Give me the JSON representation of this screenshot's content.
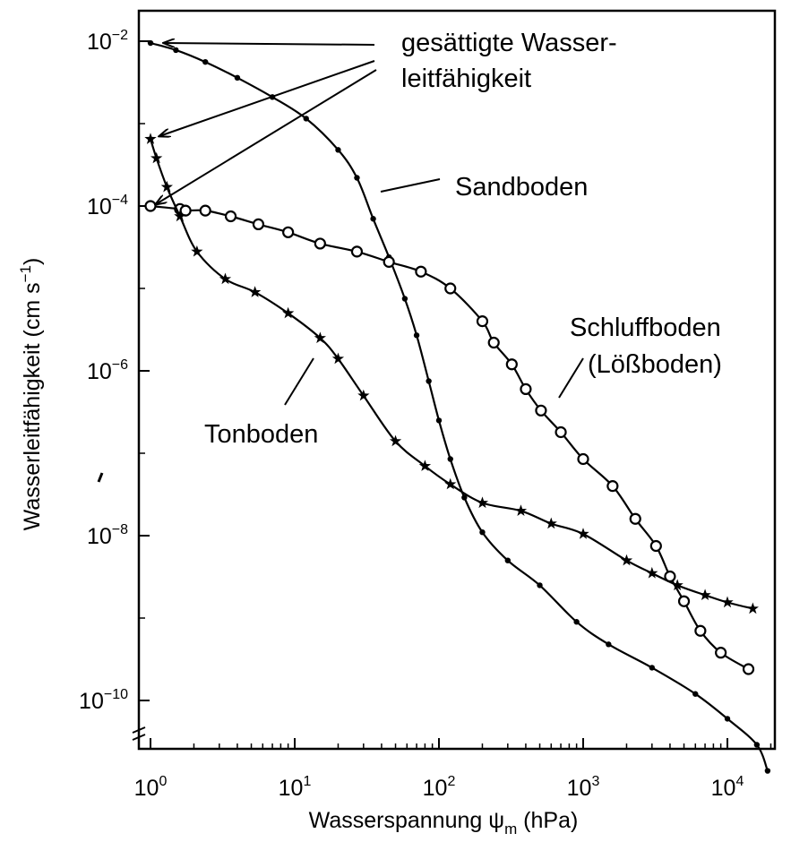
{
  "chart_data": {
    "type": "line",
    "xscale": "log",
    "yscale": "log",
    "xlim": [
      1,
      20000
    ],
    "ylim": [
      1e-11,
      0.014
    ],
    "grid": false,
    "xlabel": {
      "main": "Wasserspannung ψ",
      "sub": "m",
      "tail": " (hPa)"
    },
    "ylabel": {
      "main": "Wasserleitfähigkeit (cm s",
      "sup": "−1",
      "tail": ")"
    },
    "xticks": [
      {
        "value": 1,
        "base": "10",
        "exp": "0"
      },
      {
        "value": 10,
        "base": "10",
        "exp": "1"
      },
      {
        "value": 100,
        "base": "10",
        "exp": "2"
      },
      {
        "value": 1000,
        "base": "10",
        "exp": "3"
      },
      {
        "value": 10000,
        "base": "10",
        "exp": "4"
      }
    ],
    "yticks": [
      {
        "value": 0.01,
        "base": "10",
        "exp": "−2"
      },
      {
        "value": 0.0001,
        "base": "10",
        "exp": "−4"
      },
      {
        "value": 1e-06,
        "base": "10",
        "exp": "−6"
      },
      {
        "value": 1e-08,
        "base": "10",
        "exp": "−8"
      },
      {
        "value": 1e-10,
        "base": "10",
        "exp": "−10"
      }
    ],
    "series": [
      {
        "name": "Sandboden",
        "marker": "dot",
        "x": [
          1,
          1.5,
          2.4,
          4,
          7,
          12,
          20,
          27,
          35,
          45,
          58,
          70,
          85,
          100,
          120,
          150,
          200,
          300,
          500,
          900,
          1500,
          3000,
          6000,
          10000,
          16000,
          19000
        ],
        "y": [
          0.0095,
          0.0078,
          0.0056,
          0.0036,
          0.0021,
          0.00115,
          0.00048,
          0.00022,
          7e-05,
          2.4e-05,
          7.5e-06,
          2.7e-06,
          7.5e-07,
          2.5e-07,
          8.5e-08,
          2.9e-08,
          1.1e-08,
          5e-09,
          2.5e-09,
          9e-10,
          4.8e-10,
          2.5e-10,
          1.2e-10,
          6e-11,
          2.9e-11,
          1.4e-11
        ]
      },
      {
        "name": "Schluffboden (Lößboden)",
        "marker": "circle",
        "x": [
          1,
          1.6,
          1.75,
          2.4,
          3.6,
          5.6,
          9,
          15,
          27,
          45,
          75,
          120,
          200,
          240,
          320,
          400,
          510,
          700,
          1000,
          1600,
          2300,
          3200,
          4000,
          5000,
          6500,
          9000,
          14000
        ],
        "y": [
          0.0001,
          9.2e-05,
          8.8e-05,
          8.8e-05,
          7.5e-05,
          6e-05,
          4.8e-05,
          3.5e-05,
          2.8e-05,
          2.1e-05,
          1.6e-05,
          1e-05,
          4e-06,
          2.2e-06,
          1.2e-06,
          6e-07,
          3.3e-07,
          1.8e-07,
          8.5e-08,
          4e-08,
          1.6e-08,
          7.5e-09,
          3.2e-09,
          1.6e-09,
          7e-10,
          3.8e-10,
          2.4e-10
        ]
      },
      {
        "name": "Tonboden",
        "marker": "star",
        "x": [
          1,
          1.1,
          1.3,
          1.6,
          2.1,
          3.3,
          5.3,
          9,
          15,
          20,
          30,
          50,
          80,
          120,
          200,
          370,
          600,
          1000,
          2000,
          3000,
          4500,
          7000,
          10000,
          15000
        ],
        "y": [
          0.00065,
          0.00038,
          0.00017,
          7.5e-05,
          2.8e-05,
          1.3e-05,
          9e-06,
          5e-06,
          2.5e-06,
          1.4e-06,
          5e-07,
          1.4e-07,
          7e-08,
          4.2e-08,
          2.5e-08,
          2e-08,
          1.4e-08,
          1.05e-08,
          5e-09,
          3.5e-09,
          2.5e-09,
          1.9e-09,
          1.55e-09,
          1.3e-09
        ]
      }
    ],
    "annotations": [
      {
        "name": "saturated",
        "lines": [
          "gesättigte Wasser-",
          "leitfähigkeit"
        ]
      },
      {
        "name": "sand",
        "lines": [
          "Sandboden"
        ]
      },
      {
        "name": "schluff",
        "lines": [
          "Schluffboden",
          "(Lößboden)"
        ]
      },
      {
        "name": "ton",
        "lines": [
          "Tonboden"
        ]
      }
    ]
  }
}
